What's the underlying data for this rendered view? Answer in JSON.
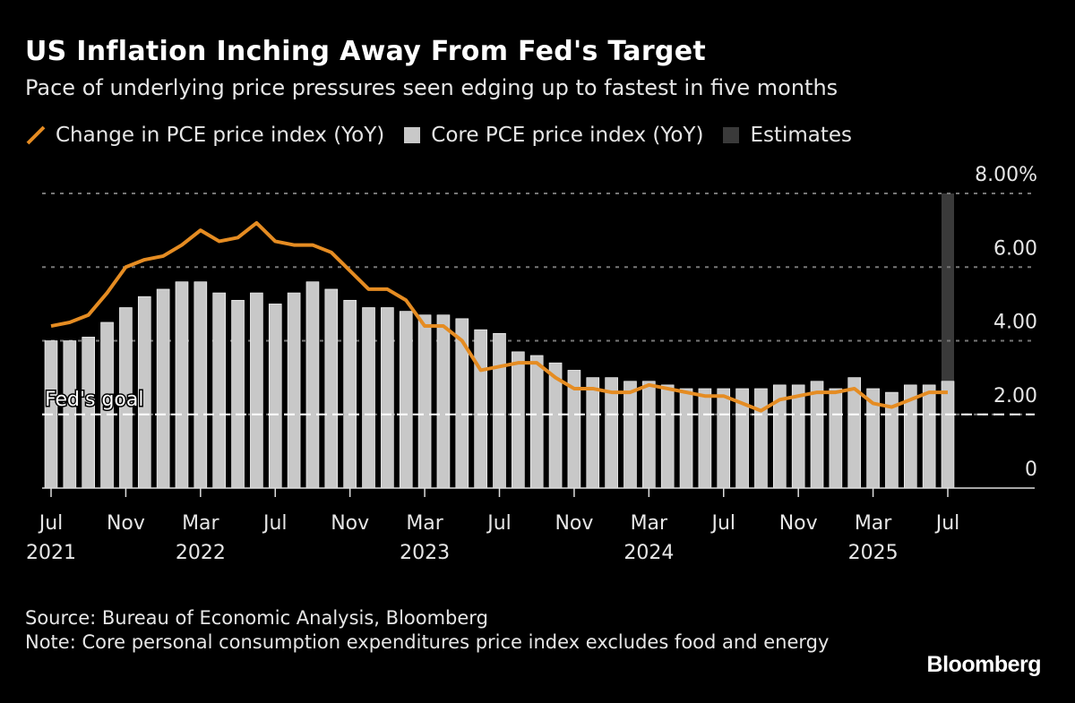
{
  "title": "US Inflation Inching Away From Fed's Target",
  "subtitle": "Pace of underlying price pressures seen edging up to fastest in five months",
  "legend": [
    {
      "label": "Change in PCE price index (YoY)",
      "color": "#e58c22",
      "kind": "line"
    },
    {
      "label": "Core PCE price index (YoY)",
      "color": "#c8c8c8",
      "kind": "bar"
    },
    {
      "label": "Estimates",
      "color": "#3a3a3a",
      "kind": "bar"
    }
  ],
  "source": "Source: Bureau of Economic Analysis, Bloomberg",
  "note": "Note: Core personal consumption expenditures price index excludes food and energy",
  "logo": "Bloomberg",
  "chart_data": {
    "type": "bar+line",
    "title": "US Inflation Inching Away From Fed's Target",
    "ylim": [
      0,
      8
    ],
    "yticks": [
      {
        "v": 0,
        "label": "0"
      },
      {
        "v": 2,
        "label": "2.00"
      },
      {
        "v": 4,
        "label": "4.00"
      },
      {
        "v": 6,
        "label": "6.00"
      },
      {
        "v": 8,
        "label": "8.00%"
      }
    ],
    "grid": true,
    "legend_position": "top",
    "xticks": [
      {
        "i": 0,
        "month": "Jul",
        "year": "2021"
      },
      {
        "i": 4,
        "month": "Nov",
        "year": ""
      },
      {
        "i": 8,
        "month": "Mar",
        "year": "2022"
      },
      {
        "i": 12,
        "month": "Jul",
        "year": ""
      },
      {
        "i": 16,
        "month": "Nov",
        "year": ""
      },
      {
        "i": 20,
        "month": "Mar",
        "year": "2023"
      },
      {
        "i": 24,
        "month": "Jul",
        "year": ""
      },
      {
        "i": 28,
        "month": "Nov",
        "year": ""
      },
      {
        "i": 32,
        "month": "Mar",
        "year": "2024"
      },
      {
        "i": 36,
        "month": "Jul",
        "year": ""
      },
      {
        "i": 40,
        "month": "Nov",
        "year": ""
      },
      {
        "i": 44,
        "month": "Mar",
        "year": "2025"
      },
      {
        "i": 48,
        "month": "Jul",
        "year": ""
      }
    ],
    "annotation": {
      "label": "Fed's goal",
      "value": 2
    },
    "categories": [
      "2021-07",
      "2021-08",
      "2021-09",
      "2021-10",
      "2021-11",
      "2021-12",
      "2022-01",
      "2022-02",
      "2022-03",
      "2022-04",
      "2022-05",
      "2022-06",
      "2022-07",
      "2022-08",
      "2022-09",
      "2022-10",
      "2022-11",
      "2022-12",
      "2023-01",
      "2023-02",
      "2023-03",
      "2023-04",
      "2023-05",
      "2023-06",
      "2023-07",
      "2023-08",
      "2023-09",
      "2023-10",
      "2023-11",
      "2023-12",
      "2024-01",
      "2024-02",
      "2024-03",
      "2024-04",
      "2024-05",
      "2024-06",
      "2024-07",
      "2024-08",
      "2024-09",
      "2024-10",
      "2024-11",
      "2024-12",
      "2025-01",
      "2025-02",
      "2025-03",
      "2025-04",
      "2025-05",
      "2025-06",
      "2025-07"
    ],
    "series": [
      {
        "name": "Core PCE price index (YoY)",
        "type": "bar",
        "color": "#c8c8c8",
        "values": [
          4.0,
          4.0,
          4.1,
          4.5,
          4.9,
          5.2,
          5.4,
          5.6,
          5.6,
          5.3,
          5.1,
          5.3,
          5.0,
          5.3,
          5.6,
          5.4,
          5.1,
          4.9,
          4.9,
          4.8,
          4.7,
          4.7,
          4.6,
          4.3,
          4.2,
          3.7,
          3.6,
          3.4,
          3.2,
          3.0,
          3.0,
          2.9,
          2.9,
          2.8,
          2.7,
          2.7,
          2.7,
          2.7,
          2.7,
          2.8,
          2.8,
          2.9,
          2.7,
          3.0,
          2.7,
          2.6,
          2.8,
          2.8,
          2.9
        ]
      },
      {
        "name": "Change in PCE price index (YoY)",
        "type": "line",
        "color": "#e58c22",
        "values": [
          4.4,
          4.5,
          4.7,
          5.3,
          6.0,
          6.2,
          6.3,
          6.6,
          7.0,
          6.7,
          6.8,
          7.2,
          6.7,
          6.6,
          6.6,
          6.4,
          5.9,
          5.4,
          5.4,
          5.1,
          4.4,
          4.4,
          4.0,
          3.2,
          3.3,
          3.4,
          3.4,
          3.0,
          2.7,
          2.7,
          2.6,
          2.6,
          2.8,
          2.7,
          2.6,
          2.5,
          2.5,
          2.3,
          2.1,
          2.4,
          2.5,
          2.6,
          2.6,
          2.7,
          2.3,
          2.2,
          2.4,
          2.6,
          2.6
        ]
      },
      {
        "name": "Estimates",
        "type": "bar",
        "color": "#3a3a3a",
        "index": 48,
        "range": [
          0,
          8
        ]
      }
    ]
  }
}
